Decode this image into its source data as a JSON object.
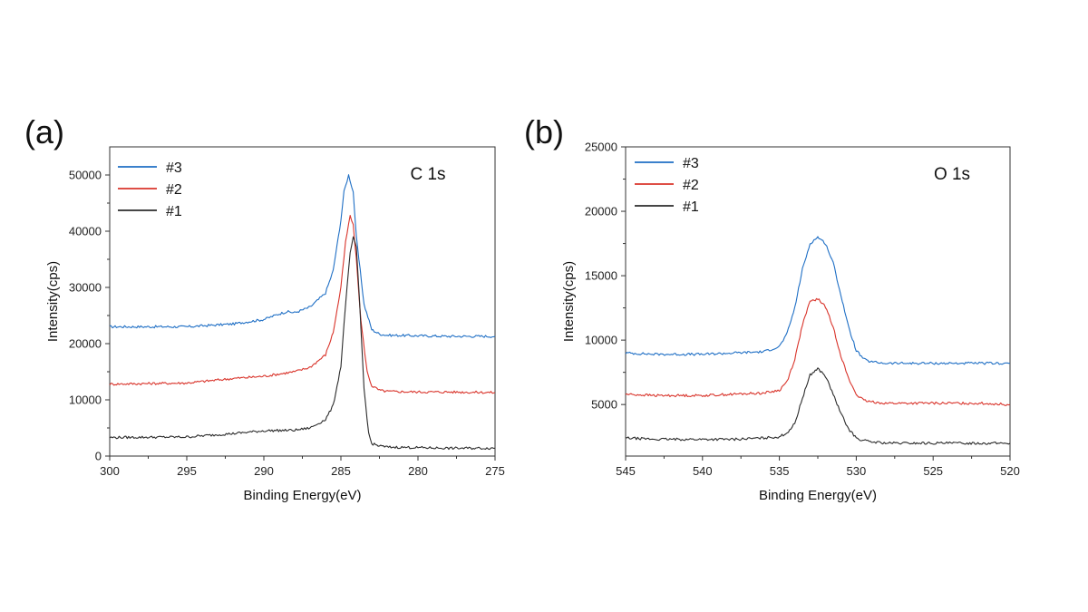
{
  "colors": {
    "#3": "#1f6fc5",
    "#2": "#d9342b",
    "#1": "#2b2b2b"
  },
  "chart_data": [
    {
      "type": "line",
      "panel_label": "(a)",
      "annotation": "C 1s",
      "xlabel": "Binding Energy(eV)",
      "ylabel": "Intensity(cps)",
      "xlim": [
        300,
        275
      ],
      "ylim": [
        0,
        55000
      ],
      "x_reversed": true,
      "x_ticks": [
        300,
        295,
        290,
        285,
        280,
        275
      ],
      "y_ticks": [
        0,
        10000,
        20000,
        30000,
        40000,
        50000
      ],
      "legend_position": "top-left",
      "grid": false,
      "series": [
        {
          "name": "#3",
          "x": [
            300,
            295,
            292,
            290,
            289,
            288.5,
            288,
            287,
            286,
            285.5,
            285,
            284.8,
            284.5,
            284.2,
            284,
            283.5,
            283,
            282.5,
            282,
            280,
            278,
            275
          ],
          "y": [
            23000,
            23000,
            23500,
            24300,
            25300,
            25700,
            25500,
            26500,
            29000,
            33000,
            42000,
            47000,
            50000,
            47000,
            39000,
            27000,
            22500,
            21700,
            21500,
            21400,
            21300,
            21300
          ]
        },
        {
          "name": "#2",
          "x": [
            300,
            295,
            292,
            290,
            288,
            287,
            286,
            285.5,
            285,
            284.7,
            284.4,
            284.2,
            284,
            283.7,
            283.3,
            283,
            282.5,
            282,
            280,
            278,
            275
          ],
          "y": [
            12800,
            13000,
            13800,
            14200,
            15000,
            15800,
            18000,
            22000,
            30000,
            38000,
            42800,
            41000,
            35000,
            24000,
            15000,
            12500,
            11700,
            11500,
            11400,
            11400,
            11300
          ]
        },
        {
          "name": "#1",
          "x": [
            300,
            295,
            292,
            290,
            288,
            287,
            286,
            285.5,
            285,
            284.7,
            284.4,
            284.2,
            284,
            283.8,
            283.5,
            283.2,
            283,
            282.5,
            282,
            280,
            278,
            275
          ],
          "y": [
            3300,
            3400,
            4000,
            4500,
            4600,
            5000,
            6500,
            9000,
            16000,
            27000,
            36000,
            39000,
            37000,
            28000,
            12000,
            4000,
            2200,
            1800,
            1600,
            1500,
            1400,
            1400
          ]
        }
      ]
    },
    {
      "type": "line",
      "panel_label": "(b)",
      "annotation": "O 1s",
      "xlabel": "Binding Energy(eV)",
      "ylabel": "Intensity(cps)",
      "xlim": [
        545,
        520
      ],
      "ylim": [
        1000,
        25000
      ],
      "x_reversed": true,
      "x_ticks": [
        545,
        540,
        535,
        530,
        525,
        520
      ],
      "y_ticks": [
        5000,
        10000,
        15000,
        20000,
        25000
      ],
      "legend_position": "top-left",
      "grid": false,
      "series": [
        {
          "name": "#3",
          "x": [
            545,
            543,
            540,
            538,
            536,
            535,
            534.5,
            534,
            533.5,
            533,
            532.5,
            532,
            531.5,
            531,
            530.5,
            530,
            529.5,
            529,
            528,
            525,
            522,
            520
          ],
          "y": [
            9000,
            8900,
            8900,
            9000,
            9100,
            9500,
            10500,
            12500,
            15500,
            17500,
            18000,
            17500,
            16000,
            13500,
            11000,
            9200,
            8500,
            8300,
            8200,
            8200,
            8200,
            8200
          ]
        },
        {
          "name": "#2",
          "x": [
            545,
            543,
            540,
            538,
            536,
            535,
            534.5,
            534,
            533.5,
            533,
            532.5,
            532,
            531.5,
            531,
            530.5,
            530,
            529.5,
            529,
            528,
            525,
            522,
            520
          ],
          "y": [
            5800,
            5700,
            5700,
            5800,
            5900,
            6100,
            6800,
            8500,
            11200,
            13000,
            13200,
            12600,
            11000,
            8800,
            7000,
            5800,
            5300,
            5200,
            5100,
            5100,
            5100,
            5000
          ]
        },
        {
          "name": "#1",
          "x": [
            545,
            543,
            540,
            538,
            536,
            535,
            534.5,
            534,
            533.5,
            533,
            532.5,
            532,
            531.5,
            531,
            530.5,
            530,
            529.5,
            529,
            528,
            525,
            522,
            520
          ],
          "y": [
            2400,
            2300,
            2300,
            2300,
            2400,
            2500,
            2800,
            3500,
            5500,
            7300,
            7800,
            7200,
            5800,
            4300,
            3100,
            2400,
            2200,
            2100,
            2000,
            2000,
            2000,
            2000
          ]
        }
      ]
    }
  ]
}
